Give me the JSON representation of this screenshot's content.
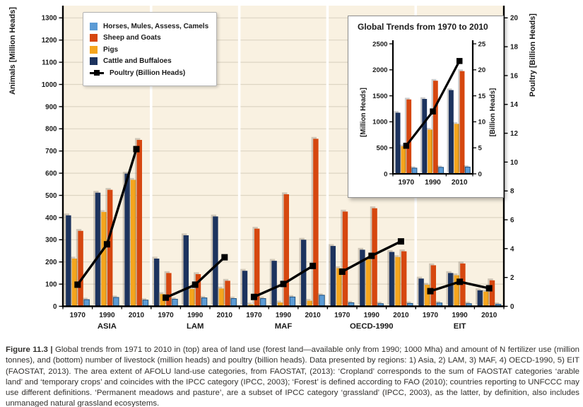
{
  "figure": {
    "caption_label": "Figure 11.3 |",
    "caption_text": "Global trends from 1971 to 2010 in (top) area of land use (forest land—available only from 1990; 1000 Mha) and amount of N fertilizer use (million tonnes), and (bottom) number of livestock (million heads) and poultry (billion heads). Data presented by regions: 1) Asia, 2) LAM, 3) MAF, 4) OECD-1990, 5) EIT (FAOSTAT, 2013). The area extent of AFOLU land-use categories, from FAOSTAT, (2013): ‘Cropland’ corresponds to the sum of FAOSTAT categories ‘arable land’ and ‘temporary crops’ and coincides with the IPCC category (IPCC, 2003); ‘Forest’ is defined according to FAO (2010); countries reporting to UNFCCC may use different definitions. ‘Permanent meadows and pasture’, are a subset of IPCC category ‘grassland’ (IPCC, 2003), as the latter, by definition, also includes unmanaged natural grassland ecosystems."
  },
  "colors": {
    "plot_background": "#f9f1e1",
    "gridline": "#ddd5c3",
    "panel_separator": "#ffffff",
    "horses_blue": "#5b9bd5",
    "sheep_red": "#d6470f",
    "pigs_yellow": "#f5a51d",
    "cattle_navy": "#1c335e",
    "poultry_black": "#000000"
  },
  "legend": {
    "items": [
      {
        "label": "Horses, Mules, Assess, Camels",
        "type": "swatch",
        "color": "#5b9bd5"
      },
      {
        "label": "Sheep and Goats",
        "type": "swatch",
        "color": "#d6470f"
      },
      {
        "label": "Pigs",
        "type": "swatch",
        "color": "#f5a51d"
      },
      {
        "label": "Cattle and Buffaloes",
        "type": "swatch",
        "color": "#1c335e"
      },
      {
        "label": "Poultry (Billion Heads)",
        "type": "line",
        "color": "#000000"
      }
    ]
  },
  "chart_data": {
    "main": {
      "type": "bar",
      "note": "Grouped bars (million heads, left axis) + poultry line with square markers (billion heads, right axis), grouped by region and year",
      "left_axis": {
        "label": "Animals [Million Heads]",
        "min": 0,
        "max": 1300,
        "tick_step": 100
      },
      "right_axis": {
        "label": "Poultry [Billion Heads]",
        "min": 0,
        "max": 20,
        "tick_step": 2
      },
      "regions": [
        "ASIA",
        "LAM",
        "MAF",
        "OECD-1990",
        "EIT"
      ],
      "years": [
        "1970",
        "1990",
        "2010"
      ],
      "bar_series": [
        {
          "name": "Cattle and Buffaloes",
          "color": "#1c335e",
          "values": [
            [
              410,
              512,
              598
            ],
            [
              215,
              320,
              405
            ],
            [
              160,
              205,
              300
            ],
            [
              272,
              255,
              245
            ],
            [
              125,
              150,
              72
            ]
          ]
        },
        {
          "name": "Pigs",
          "color": "#f5a51d",
          "values": [
            [
              215,
              425,
              570
            ],
            [
              55,
              78,
              80
            ],
            [
              8,
              17,
              25
            ],
            [
              172,
              212,
              222
            ],
            [
              97,
              140,
              66
            ]
          ]
        },
        {
          "name": "Sheep and Goats",
          "color": "#d6470f",
          "values": [
            [
              340,
              525,
              750
            ],
            [
              150,
              145,
              115
            ],
            [
              350,
              505,
              755
            ],
            [
              427,
              442,
              248
            ],
            [
              185,
              193,
              117
            ]
          ]
        },
        {
          "name": "Horses, Mules, Assess, Camels",
          "color": "#5b9bd5",
          "values": [
            [
              30,
              40,
              28
            ],
            [
              32,
              38,
              35
            ],
            [
              35,
              42,
              50
            ],
            [
              16,
              12,
              13
            ],
            [
              15,
              12,
              9
            ]
          ]
        }
      ],
      "line_series": {
        "name": "Poultry (Billion Heads)",
        "color": "#000000",
        "values": [
          [
            1.5,
            4.3,
            10.9
          ],
          [
            0.6,
            1.5,
            3.4
          ],
          [
            0.65,
            1.55,
            2.8
          ],
          [
            2.4,
            3.5,
            4.5
          ],
          [
            1.05,
            1.7,
            1.25
          ]
        ]
      }
    },
    "inset": {
      "type": "bar",
      "title": "Global Trends from 1970 to 2010",
      "left_axis": {
        "label": "[Million Heads]",
        "min": 0,
        "max": 2500,
        "tick_step": 500
      },
      "right_axis": {
        "label": "[Billion Heads]",
        "min": 0,
        "max": 25,
        "tick_step": 5
      },
      "years": [
        "1970",
        "1990",
        "2010"
      ],
      "bar_series": [
        {
          "name": "Cattle and Buffaloes",
          "color": "#1c335e",
          "values": [
            1175,
            1440,
            1610
          ]
        },
        {
          "name": "Pigs",
          "color": "#f5a51d",
          "values": [
            530,
            850,
            960
          ]
        },
        {
          "name": "Sheep and Goats",
          "color": "#d6470f",
          "values": [
            1430,
            1790,
            1975
          ]
        },
        {
          "name": "Horses, Mules, Assess, Camels",
          "color": "#5b9bd5",
          "values": [
            110,
            125,
            130
          ]
        }
      ],
      "line_series": {
        "name": "Poultry (Billion Heads)",
        "color": "#000000",
        "values": [
          5.4,
          12.0,
          21.7
        ]
      }
    }
  }
}
